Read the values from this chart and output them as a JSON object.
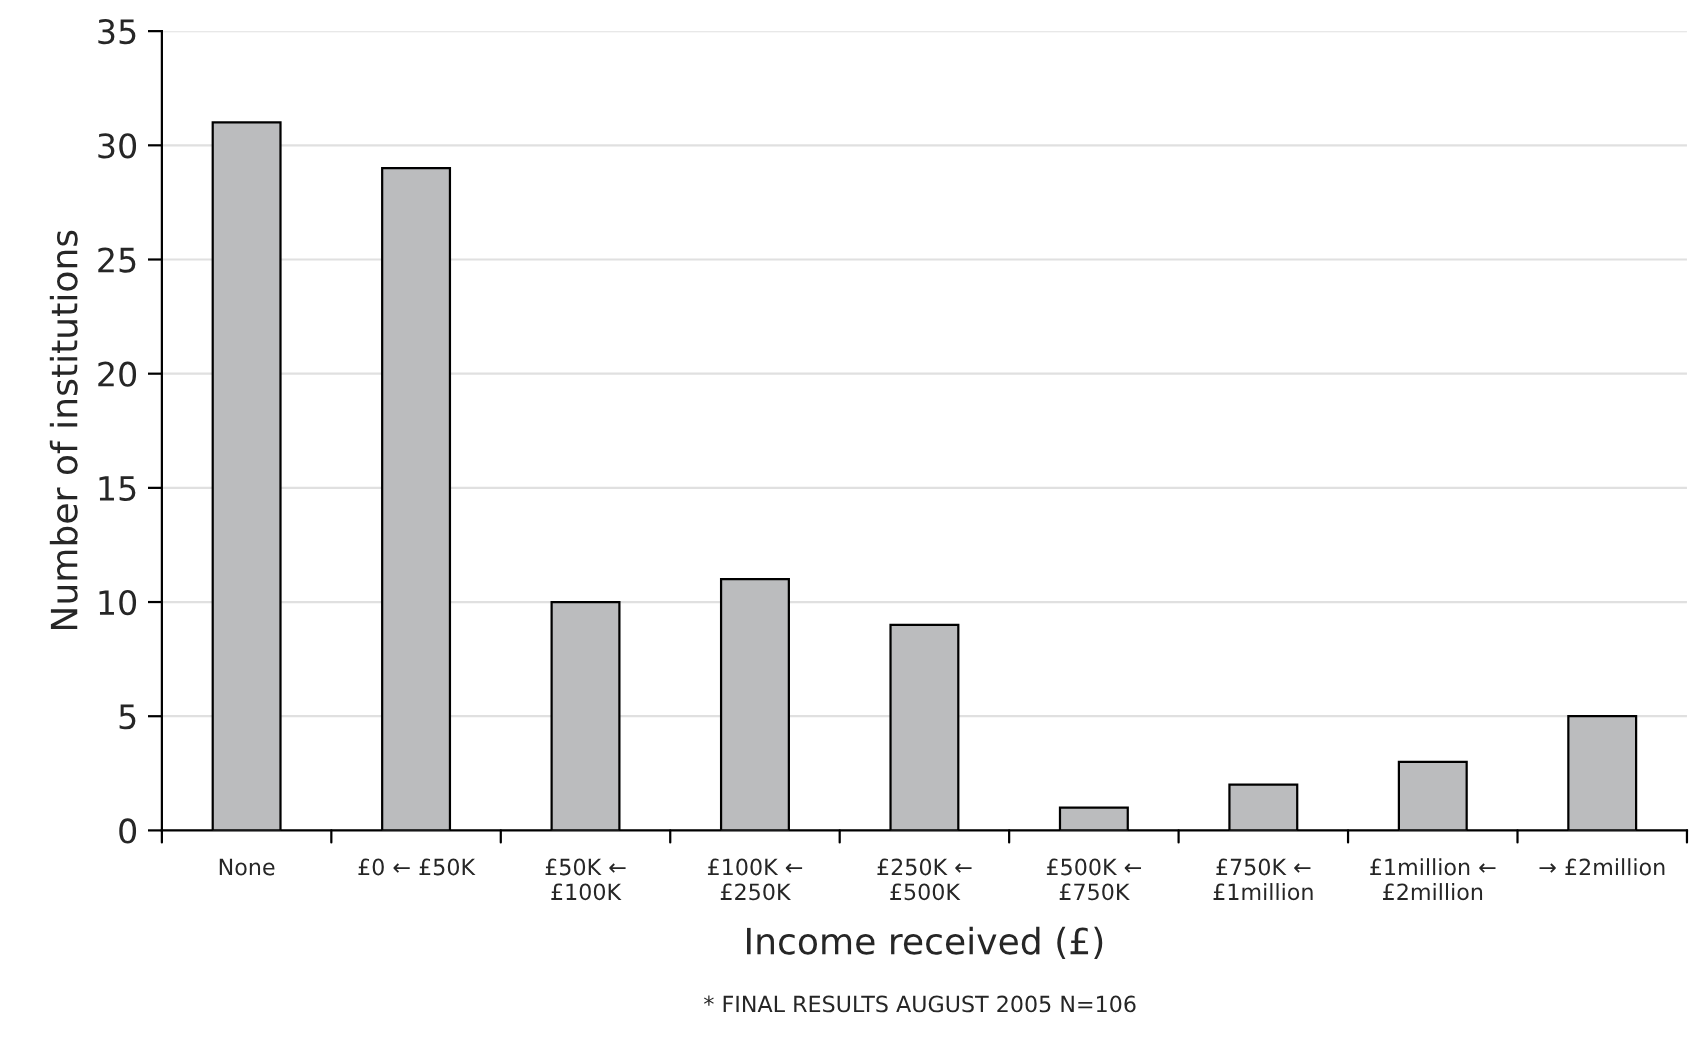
{
  "chart_data": {
    "type": "bar",
    "categories": [
      "None",
      "£0 ← £50K",
      "£50K ←\n£100K",
      "£100K ←\n£250K",
      "£250K ←\n£500K",
      "£500K ←\n£750K",
      "£750K ←\n£1million",
      "£1million ←\n£2million",
      "→ £2million"
    ],
    "values": [
      31,
      29,
      10,
      11,
      9,
      1,
      2,
      3,
      5
    ],
    "color": "#bbbcbe",
    "xlabel": "Income received (£)",
    "ylabel": "Number of institutions",
    "annotations": [
      "* FINAL RESULTS AUGUST 2005 N=106"
    ],
    "ylim": [
      0,
      35
    ],
    "yticks": [
      0,
      5,
      10,
      15,
      20,
      25,
      30,
      35
    ],
    "grid": "y"
  }
}
